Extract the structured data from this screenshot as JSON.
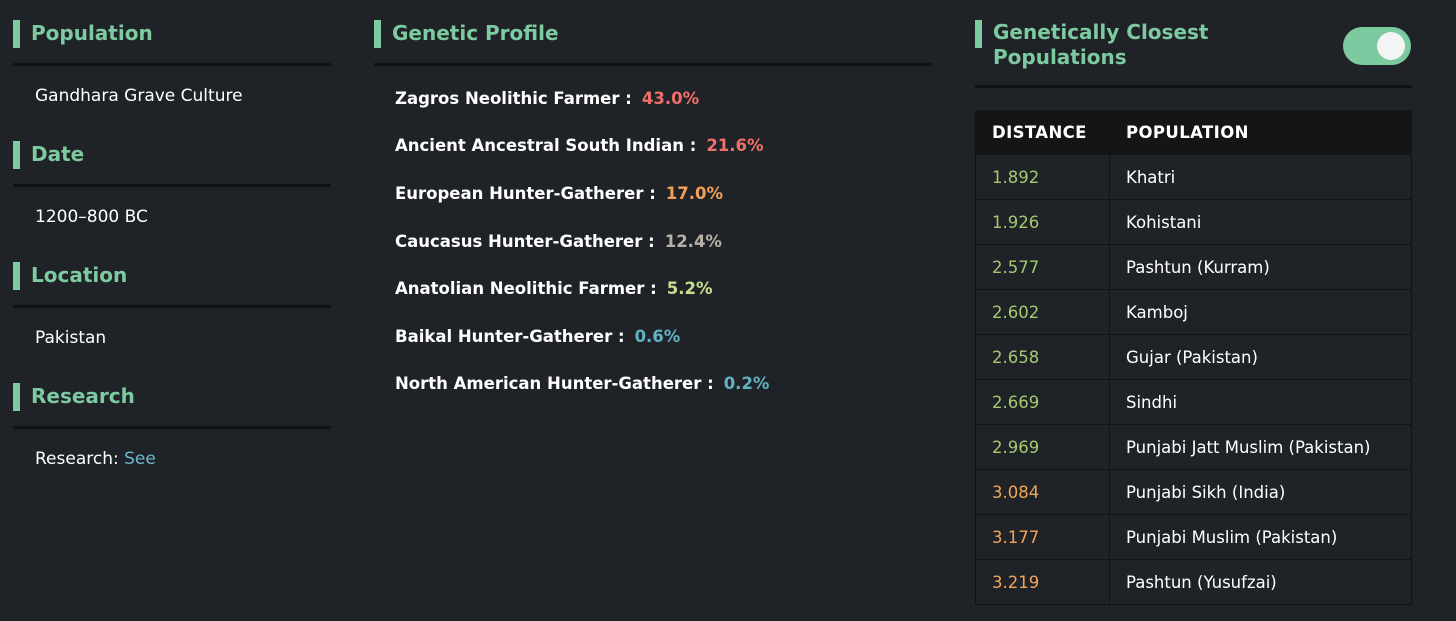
{
  "left": {
    "sections": [
      {
        "title": "Population",
        "value": "Gandhara Grave Culture"
      },
      {
        "title": "Date",
        "value": "1200–800 BC"
      },
      {
        "title": "Location",
        "value": "Pakistan"
      },
      {
        "title": "Research",
        "value_prefix": "Research: ",
        "link_text": "See"
      }
    ]
  },
  "profile": {
    "title": "Genetic Profile",
    "items": [
      {
        "label": "Zagros Neolithic Farmer :",
        "value": "43.0%",
        "color": "#f06f68"
      },
      {
        "label": "Ancient Ancestral South Indian :",
        "value": "21.6%",
        "color": "#f06f68"
      },
      {
        "label": "European Hunter-Gatherer :",
        "value": "17.0%",
        "color": "#f0a05a"
      },
      {
        "label": "Caucasus Hunter-Gatherer :",
        "value": "12.4%",
        "color": "#b7b2a5"
      },
      {
        "label": "Anatolian Neolithic Farmer :",
        "value": "5.2%",
        "color": "#c7e08d"
      },
      {
        "label": "Baikal Hunter-Gatherer :",
        "value": "0.6%",
        "color": "#62b3c2"
      },
      {
        "label": "North American Hunter-Gatherer :",
        "value": "0.2%",
        "color": "#62b3c2"
      }
    ]
  },
  "closest": {
    "title_line1": "Genetically Closest",
    "title_line2": "Populations",
    "toggle_on": true,
    "headers": {
      "distance": "DISTANCE",
      "population": "POPULATION"
    },
    "rows": [
      {
        "distance": "1.892",
        "population": "Khatri",
        "color": "#a5c96f"
      },
      {
        "distance": "1.926",
        "population": "Kohistani",
        "color": "#a5c96f"
      },
      {
        "distance": "2.577",
        "population": "Pashtun (Kurram)",
        "color": "#a5c96f"
      },
      {
        "distance": "2.602",
        "population": "Kamboj",
        "color": "#a5c96f"
      },
      {
        "distance": "2.658",
        "population": "Gujar (Pakistan)",
        "color": "#a5c96f"
      },
      {
        "distance": "2.669",
        "population": "Sindhi",
        "color": "#a5c96f"
      },
      {
        "distance": "2.969",
        "population": "Punjabi Jatt Muslim (Pakistan)",
        "color": "#a5c96f"
      },
      {
        "distance": "3.084",
        "population": "Punjabi Sikh (India)",
        "color": "#f0a557"
      },
      {
        "distance": "3.177",
        "population": "Punjabi Muslim (Pakistan)",
        "color": "#f0a557"
      },
      {
        "distance": "3.219",
        "population": "Pashtun (Yusufzai)",
        "color": "#f0a557"
      }
    ]
  }
}
